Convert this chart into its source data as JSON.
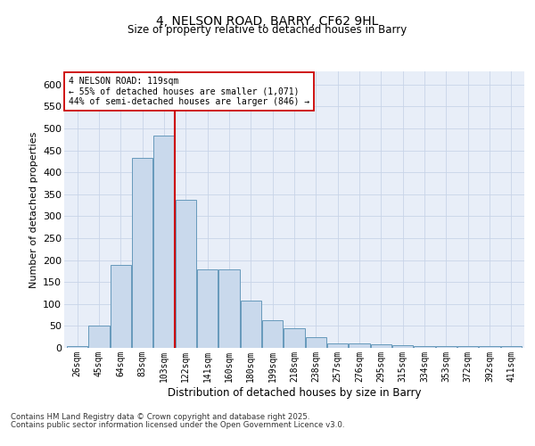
{
  "title1": "4, NELSON ROAD, BARRY, CF62 9HL",
  "title2": "Size of property relative to detached houses in Barry",
  "xlabel": "Distribution of detached houses by size in Barry",
  "ylabel": "Number of detached properties",
  "categories": [
    "26sqm",
    "45sqm",
    "64sqm",
    "83sqm",
    "103sqm",
    "122sqm",
    "141sqm",
    "160sqm",
    "180sqm",
    "199sqm",
    "218sqm",
    "238sqm",
    "257sqm",
    "276sqm",
    "295sqm",
    "315sqm",
    "334sqm",
    "353sqm",
    "372sqm",
    "392sqm",
    "411sqm"
  ],
  "bar_values": [
    5,
    50,
    190,
    432,
    483,
    338,
    178,
    178,
    108,
    62,
    44,
    24,
    11,
    11,
    8,
    7,
    5,
    4,
    4,
    5,
    4
  ],
  "bar_color": "#c9d9ec",
  "bar_edge_color": "#6699bb",
  "vline_color": "#cc0000",
  "annotation_title": "4 NELSON ROAD: 119sqm",
  "annotation_line1": "← 55% of detached houses are smaller (1,071)",
  "annotation_line2": "44% of semi-detached houses are larger (846) →",
  "annotation_box_color": "#ffffff",
  "annotation_box_edge": "#cc0000",
  "ylim": [
    0,
    630
  ],
  "yticks": [
    0,
    50,
    100,
    150,
    200,
    250,
    300,
    350,
    400,
    450,
    500,
    550,
    600
  ],
  "grid_color": "#c8d4e8",
  "bg_color": "#e8eef8",
  "footnote1": "Contains HM Land Registry data © Crown copyright and database right 2025.",
  "footnote2": "Contains public sector information licensed under the Open Government Licence v3.0."
}
